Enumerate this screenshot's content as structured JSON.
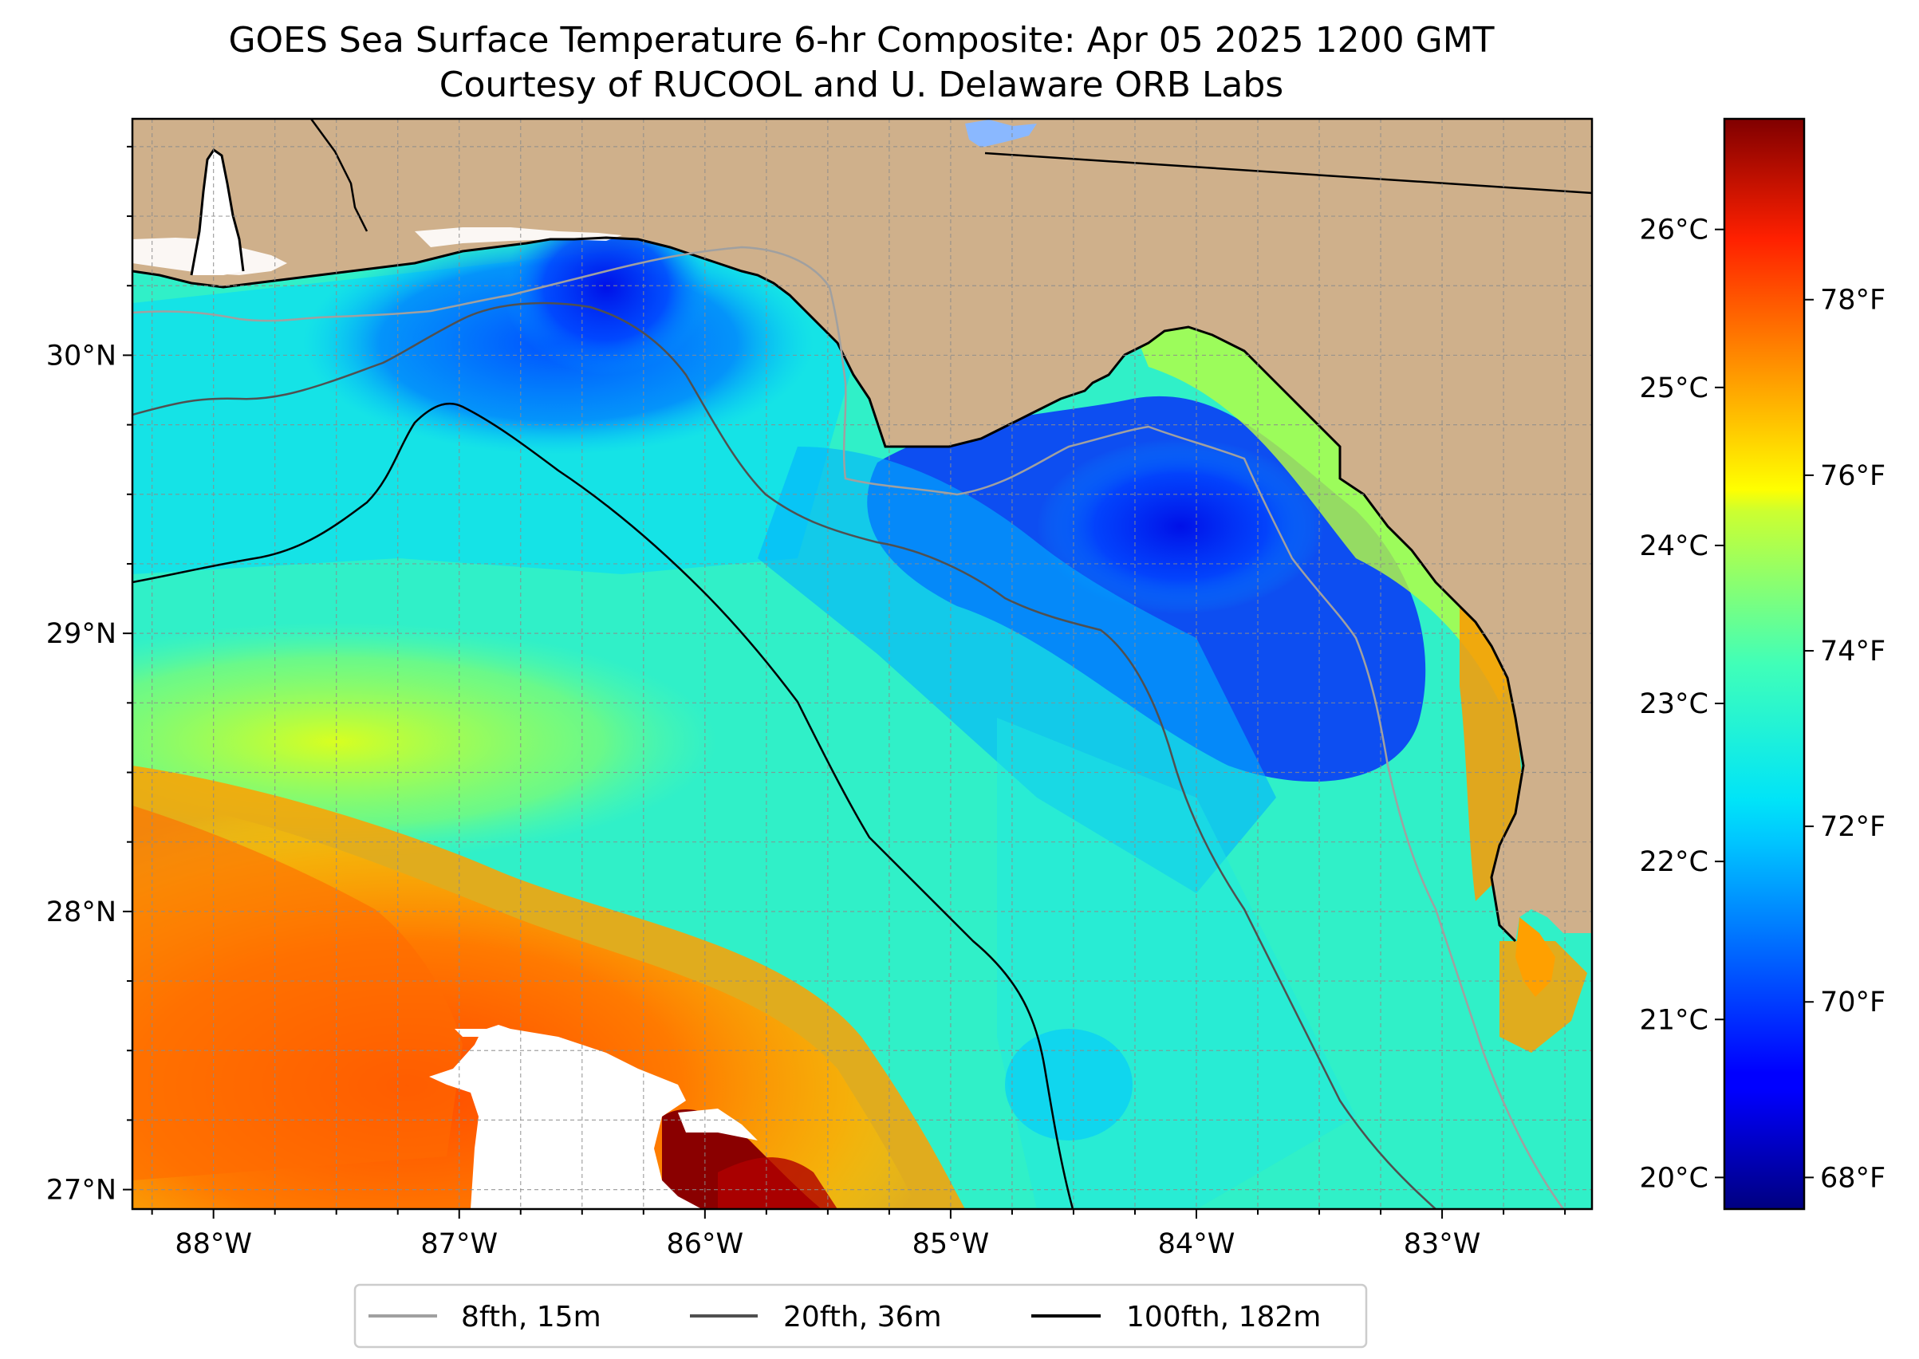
{
  "figure": {
    "title_line1": "GOES Sea Surface Temperature 6-hr Composite: Apr 05 2025 1200 GMT",
    "title_line2": "Courtesy of RUCOOL and U. Delaware ORB Labs"
  },
  "map": {
    "lon_range": [
      -88.33,
      -82.39
    ],
    "lat_range": [
      26.93,
      30.85
    ],
    "grid": "dashed, every 0.25 degree",
    "land_color": "#cfb08b",
    "no_data_color": "#ffffff"
  },
  "axes": {
    "x_ticks": [
      {
        "value": -88,
        "label": "88°W"
      },
      {
        "value": -87,
        "label": "87°W"
      },
      {
        "value": -86,
        "label": "86°W"
      },
      {
        "value": -85,
        "label": "85°W"
      },
      {
        "value": -84,
        "label": "84°W"
      },
      {
        "value": -83,
        "label": "83°W"
      }
    ],
    "y_ticks": [
      {
        "value": 27,
        "label": "27°N"
      },
      {
        "value": 28,
        "label": "28°N"
      },
      {
        "value": 29,
        "label": "29°N"
      },
      {
        "value": 30,
        "label": "30°N"
      }
    ]
  },
  "colorbar": {
    "vmin_c": 19.8,
    "vmax_c": 26.7,
    "colormap": "jet",
    "celsius_ticks": [
      {
        "value": 20,
        "label": "20°C"
      },
      {
        "value": 21,
        "label": "21°C"
      },
      {
        "value": 22,
        "label": "22°C"
      },
      {
        "value": 23,
        "label": "23°C"
      },
      {
        "value": 24,
        "label": "24°C"
      },
      {
        "value": 25,
        "label": "25°C"
      },
      {
        "value": 26,
        "label": "26°C"
      }
    ],
    "fahrenheit_ticks": [
      {
        "value": 68,
        "label": "68°F"
      },
      {
        "value": 70,
        "label": "70°F"
      },
      {
        "value": 72,
        "label": "72°F"
      },
      {
        "value": 74,
        "label": "74°F"
      },
      {
        "value": 76,
        "label": "76°F"
      },
      {
        "value": 78,
        "label": "78°F"
      }
    ]
  },
  "legend": {
    "entries": [
      {
        "label": "8fth, 15m",
        "color": "#a0a0a0"
      },
      {
        "label": "20fth, 36m",
        "color": "#505050"
      },
      {
        "label": "100fth, 182m",
        "color": "#000000"
      }
    ]
  }
}
